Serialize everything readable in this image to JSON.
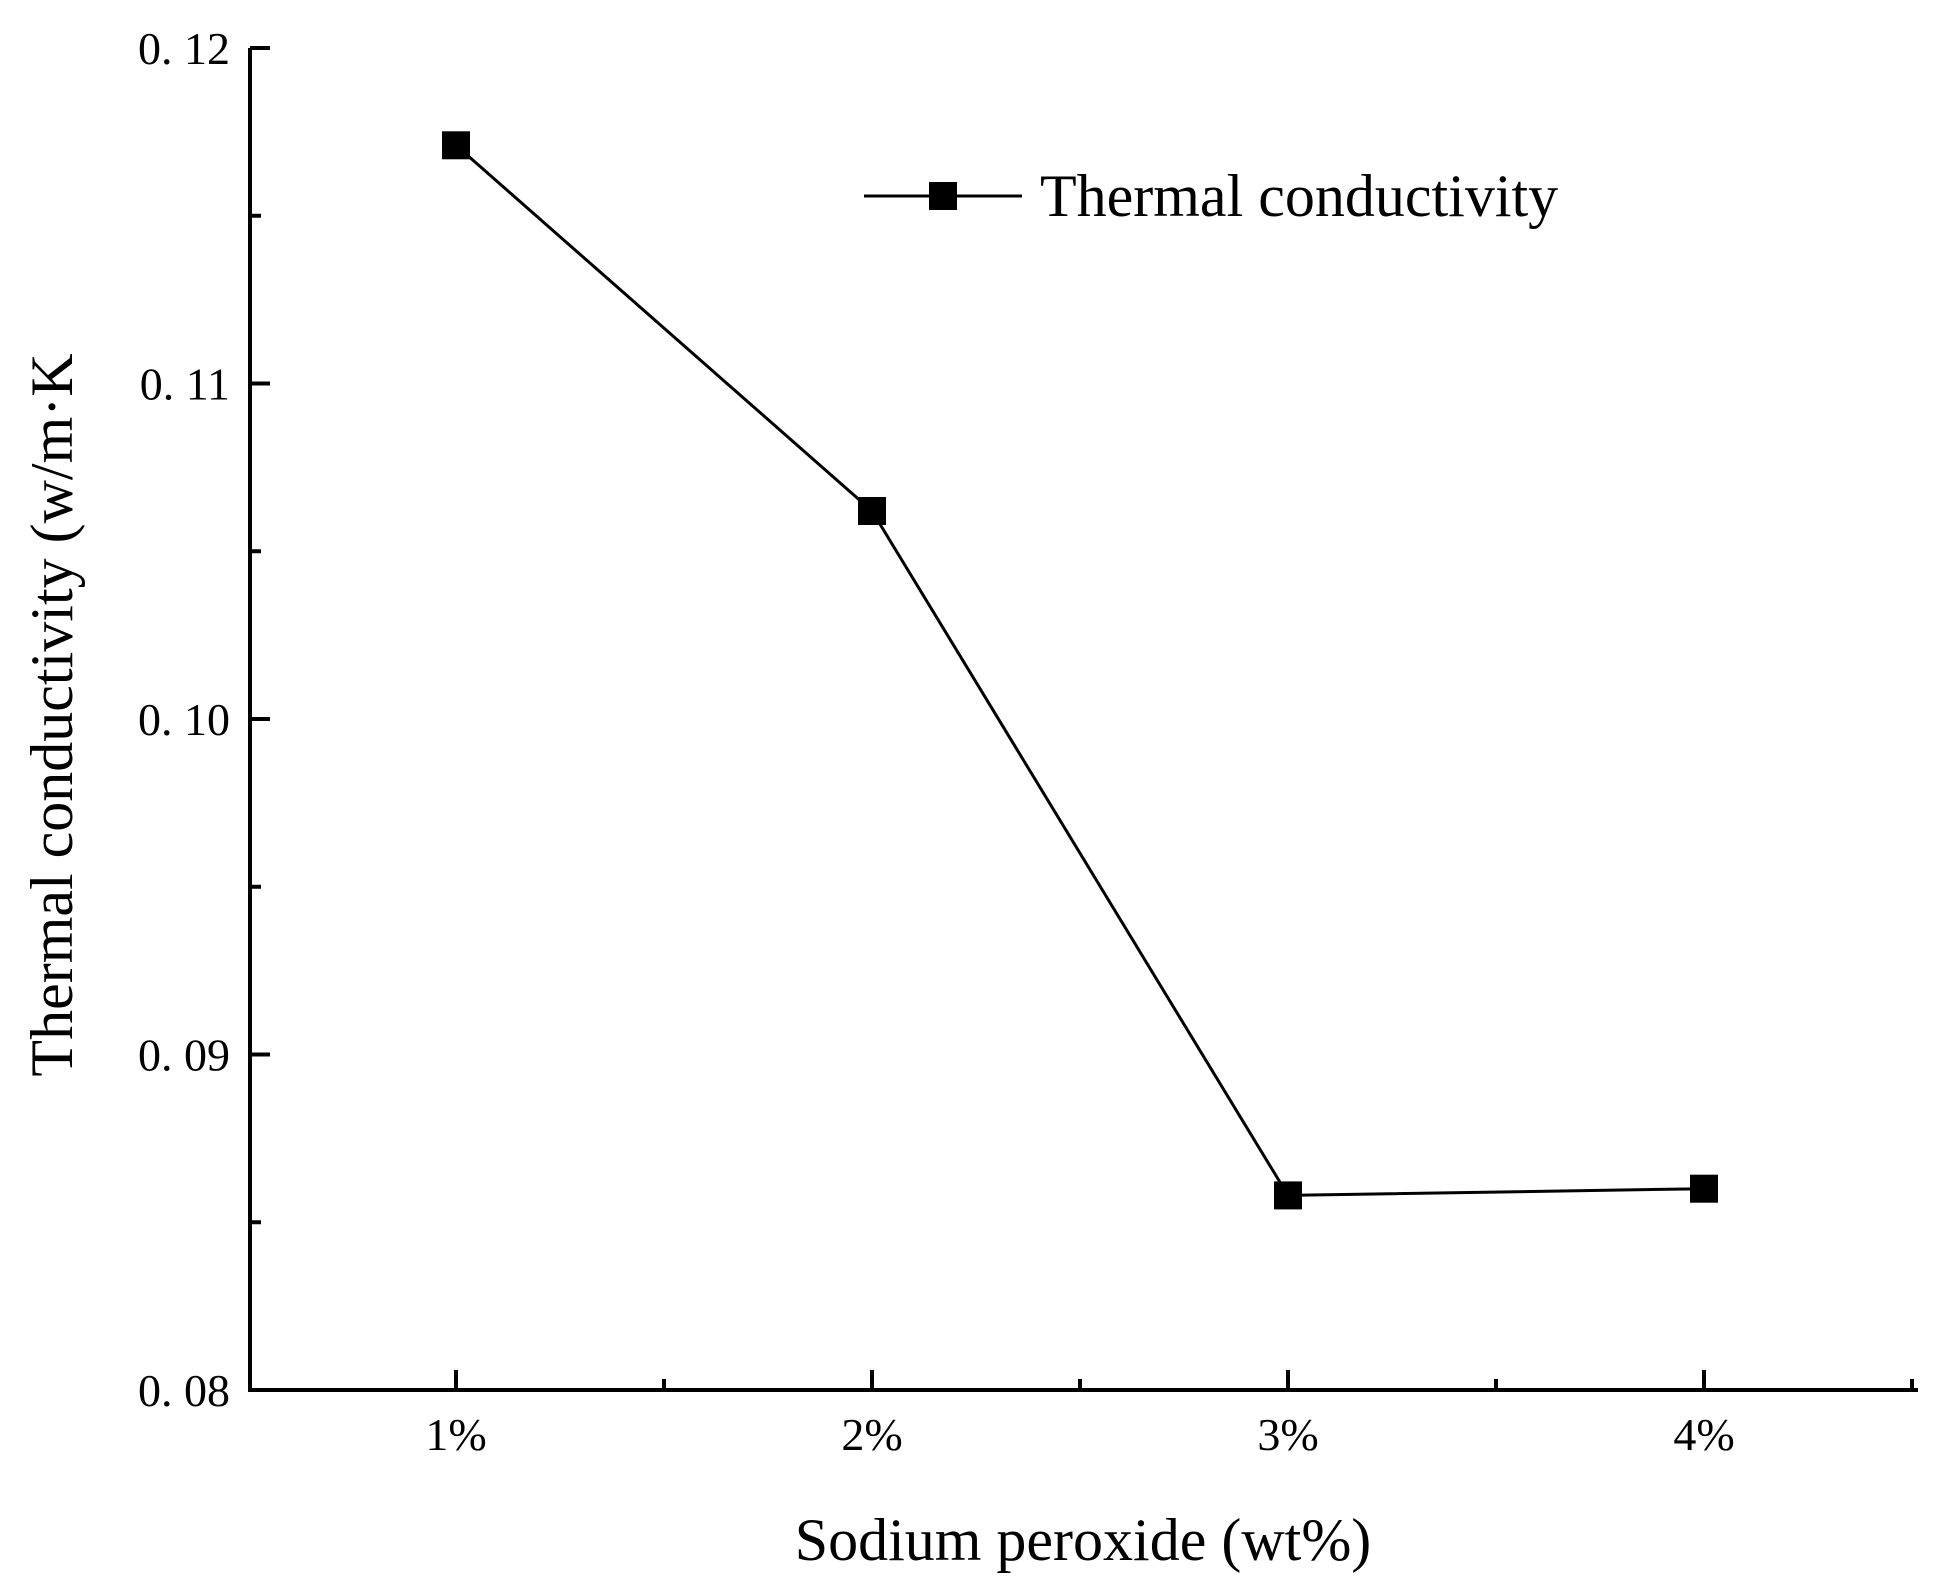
{
  "chart_data": {
    "type": "line",
    "categories": [
      "1%",
      "2%",
      "3%",
      "4%"
    ],
    "series": [
      {
        "name": "Thermal conductivity",
        "values": [
          0.1171,
          0.1062,
          0.0858,
          0.086
        ],
        "marker": "square",
        "color": "#000000"
      }
    ],
    "xlabel": "Sodium peroxide (wt%)",
    "ylabel": "Thermal conductivity (w/m·K",
    "ylim": [
      0.08,
      0.12
    ],
    "yticks": [
      0.08,
      0.09,
      0.1,
      0.11,
      0.12
    ],
    "ytick_labels": [
      "0. 08",
      "0. 09",
      "0. 10",
      "0. 11",
      "0. 12"
    ],
    "grid": false,
    "legend_position": "top-right"
  }
}
